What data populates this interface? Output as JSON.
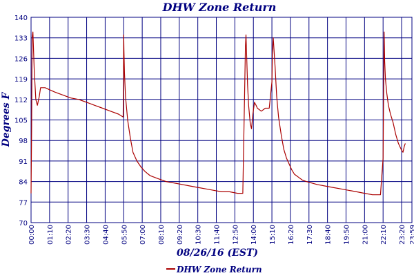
{
  "chart_data": {
    "type": "line",
    "title": "DHW Zone Return",
    "xlabel": "08/26/16 (EST)",
    "ylabel": "Degrees F",
    "ylim": [
      70,
      140
    ],
    "yticks": [
      70,
      77,
      84,
      91,
      98,
      105,
      112,
      119,
      126,
      133,
      140
    ],
    "xlim": [
      "00:00",
      "23:59"
    ],
    "xtick_labels": [
      "00:00",
      "01:10",
      "02:20",
      "03:30",
      "04:40",
      "05:50",
      "07:00",
      "08:10",
      "09:20",
      "10:30",
      "11:40",
      "12:50",
      "14:00",
      "15:10",
      "16:20",
      "17:30",
      "18:40",
      "19:50",
      "21:00",
      "22:10",
      "23:20",
      "23:59"
    ],
    "grid": true,
    "legend_position": "bottom-center",
    "colors": {
      "series": "#aa0000",
      "grid": "#000080",
      "tick_labels": "#000080",
      "title": "#000080"
    },
    "series": [
      {
        "name": "DHW Zone Return",
        "x": [
          "00:00",
          "00:02",
          "00:04",
          "00:07",
          "00:12",
          "00:18",
          "00:24",
          "00:31",
          "00:36",
          "00:41",
          "00:47",
          "00:53",
          "01:05",
          "01:30",
          "02:00",
          "02:30",
          "03:00",
          "03:30",
          "04:00",
          "04:30",
          "05:00",
          "05:30",
          "05:48",
          "05:50",
          "05:51",
          "05:53",
          "05:57",
          "06:05",
          "06:15",
          "06:25",
          "06:40",
          "06:55",
          "07:10",
          "07:30",
          "08:00",
          "08:30",
          "09:00",
          "09:30",
          "10:00",
          "10:30",
          "11:00",
          "11:30",
          "12:00",
          "12:30",
          "13:00",
          "13:20",
          "13:30",
          "13:32",
          "13:35",
          "13:38",
          "13:42",
          "13:48",
          "13:53",
          "13:58",
          "14:04",
          "14:10",
          "14:15",
          "14:30",
          "14:45",
          "15:00",
          "15:10",
          "15:12",
          "15:15",
          "15:18",
          "15:22",
          "15:28",
          "15:35",
          "15:45",
          "15:55",
          "16:05",
          "16:15",
          "16:25",
          "16:35",
          "16:50",
          "17:05",
          "17:20",
          "17:40",
          "18:00",
          "18:30",
          "19:00",
          "19:30",
          "20:00",
          "20:30",
          "21:00",
          "21:30",
          "22:00",
          "22:10",
          "22:12",
          "22:14",
          "22:16",
          "22:19",
          "22:24",
          "22:30",
          "22:38",
          "22:48",
          "22:58",
          "23:08",
          "23:18",
          "23:25",
          "23:30",
          "23:34"
        ],
        "values": [
          80,
          101,
          133,
          135,
          122,
          112,
          110,
          113,
          116,
          116,
          116,
          116,
          115.5,
          114.5,
          113.5,
          112.5,
          112,
          111,
          110,
          109,
          108,
          107,
          106,
          134,
          129,
          121,
          113,
          105,
          99,
          94,
          91,
          89,
          87.5,
          86,
          85,
          84,
          83.5,
          83,
          82.5,
          82,
          81.5,
          81,
          80.5,
          80.5,
          80,
          80,
          130,
          134,
          126,
          117,
          110,
          104,
          102,
          107,
          111,
          110,
          109,
          108,
          109,
          109,
          118,
          128,
          133,
          129,
          123,
          113,
          106,
          100,
          95,
          92,
          90,
          88,
          86.5,
          85.5,
          84.5,
          84,
          83.5,
          83,
          82.5,
          82,
          81.5,
          81,
          80.5,
          80,
          79.5,
          79.5,
          92,
          116,
          135,
          125,
          119,
          114,
          110,
          107,
          104,
          100,
          97,
          95,
          94,
          96,
          97
        ]
      }
    ]
  }
}
